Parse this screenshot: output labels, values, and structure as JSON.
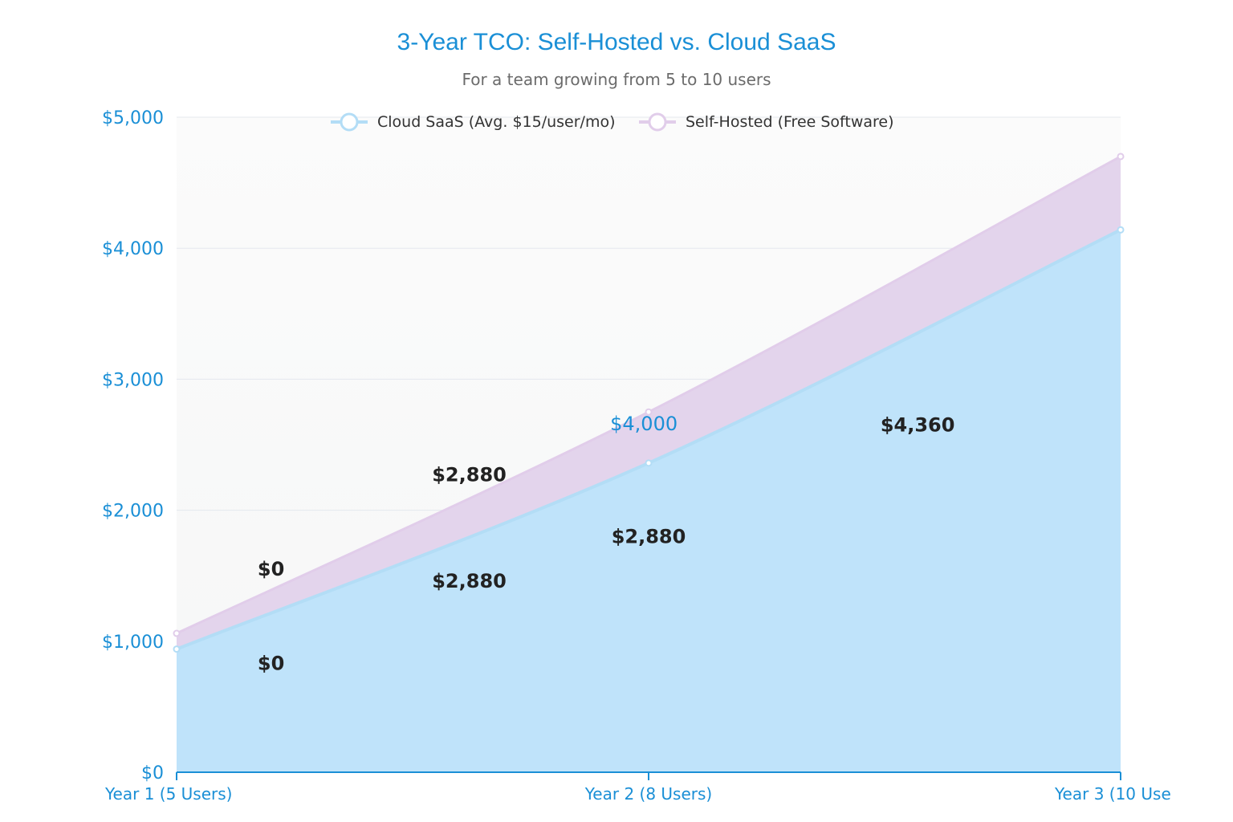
{
  "chart_data": {
    "type": "area",
    "title": "3-Year TCO: Self-Hosted vs. Cloud SaaS",
    "subtitle": "For a team growing from 5 to 10 users",
    "categories": [
      "Year 1  (5 Users)",
      "Year 2 (8 Users)",
      "Year 3 (10 Use"
    ],
    "ylim": [
      0,
      5000
    ],
    "yticks": [
      {
        "value": 0,
        "label": "$0"
      },
      {
        "value": 1000,
        "label": "$1,000"
      },
      {
        "value": 2000,
        "label": "$2,000"
      },
      {
        "value": 3000,
        "label": "$3,000"
      },
      {
        "value": 4000,
        "label": "$4,000"
      },
      {
        "value": 5000,
        "label": "$5,000"
      }
    ],
    "grid": true,
    "legend_position": "top",
    "series": [
      {
        "name": "Cloud SaaS (Avg. $15/user/mo)",
        "color": "#bfe3fa",
        "line_color": "#b3ddf6",
        "values": [
          940,
          2360,
          4140
        ]
      },
      {
        "name": "Self-Hosted (Free Software)",
        "color": "#e3d4ec",
        "line_color": "#e1cdea",
        "values": [
          1060,
          2750,
          4700
        ]
      }
    ],
    "annotations": [
      {
        "text": "$0",
        "x": 0.2,
        "y": 1500,
        "style": "dark"
      },
      {
        "text": "$0",
        "x": 0.2,
        "y": 780,
        "style": "dark"
      },
      {
        "text": "$2,880",
        "x": 0.62,
        "y": 2220,
        "style": "dark"
      },
      {
        "text": "$2,880",
        "x": 0.62,
        "y": 1410,
        "style": "dark"
      },
      {
        "text": "$4,000",
        "x": 0.99,
        "y": 2610,
        "style": "blue"
      },
      {
        "text": "$2,880",
        "x": 1.0,
        "y": 1750,
        "style": "dark"
      },
      {
        "text": "$4,360",
        "x": 1.57,
        "y": 2600,
        "style": "dark"
      }
    ]
  }
}
